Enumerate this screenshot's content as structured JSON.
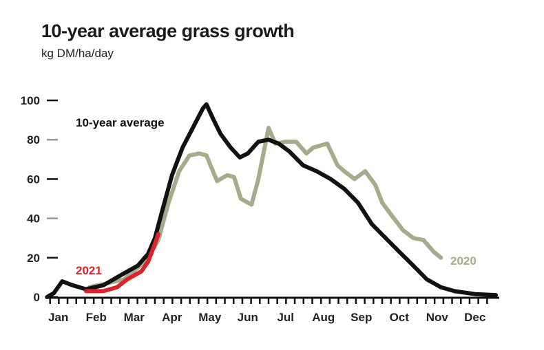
{
  "chart_data": {
    "type": "line",
    "title": "10-year average grass growth",
    "subtitle": "kg DM/ha/day",
    "xlabel": "",
    "ylabel": "",
    "x_unit": "month (0 = start of Jan, 12 = end of Dec)",
    "xlim": [
      0,
      12
    ],
    "ylim": [
      0,
      100
    ],
    "y_ticks": [
      0,
      20,
      40,
      60,
      80,
      100
    ],
    "x_tick_labels": [
      "Jan",
      "Feb",
      "Mar",
      "Apr",
      "May",
      "Jun",
      "Jul",
      "Aug",
      "Sep",
      "Oct",
      "Nov",
      "Dec"
    ],
    "grid": false,
    "legend": "inline labels",
    "series": [
      {
        "name": "10-year average",
        "color": "#111111",
        "x": [
          0.15,
          0.33,
          0.55,
          0.82,
          1.18,
          1.64,
          2.09,
          2.55,
          2.82,
          3.0,
          3.18,
          3.45,
          3.73,
          4.0,
          4.27,
          4.36,
          4.55,
          4.73,
          5.0,
          5.24,
          5.45,
          5.73,
          6.0,
          6.27,
          6.55,
          6.91,
          7.27,
          7.64,
          8.0,
          8.36,
          8.73,
          9.09,
          9.45,
          9.82,
          10.18,
          10.55,
          10.91,
          11.45,
          12.0
        ],
        "y": [
          0,
          2,
          8,
          6,
          4,
          6,
          11,
          16,
          22,
          30,
          43,
          62,
          76,
          86,
          96,
          98,
          90,
          83,
          76,
          71,
          73,
          79,
          80,
          78,
          74,
          67,
          64,
          60,
          55,
          48,
          37,
          30,
          23,
          16,
          9,
          5,
          3,
          1.5,
          1
        ]
      },
      {
        "name": "2020",
        "color": "#a9a98c",
        "x": [
          1.27,
          1.73,
          2.18,
          2.55,
          2.82,
          3.09,
          3.36,
          3.64,
          3.91,
          4.18,
          4.36,
          4.64,
          4.91,
          5.09,
          5.27,
          5.55,
          5.73,
          6.0,
          6.18,
          6.45,
          6.73,
          7.0,
          7.18,
          7.55,
          7.82,
          8.0,
          8.27,
          8.55,
          8.82,
          9.0,
          9.27,
          9.55,
          9.82,
          10.09,
          10.36,
          10.55
        ],
        "y": [
          5,
          7,
          9,
          15,
          20,
          29,
          48,
          64,
          72,
          73,
          72,
          59,
          62,
          61,
          50,
          47,
          60,
          86,
          78,
          79,
          79,
          73,
          76,
          78,
          67,
          64,
          60,
          64,
          57,
          48,
          41,
          34,
          30,
          29,
          23,
          20
        ]
      },
      {
        "name": "2021",
        "color": "#d9252a",
        "x": [
          1.18,
          1.64,
          2.0,
          2.27,
          2.64,
          2.82,
          3.0,
          3.09
        ],
        "y": [
          3,
          3,
          5,
          9,
          13,
          18,
          27,
          32
        ]
      }
    ]
  }
}
